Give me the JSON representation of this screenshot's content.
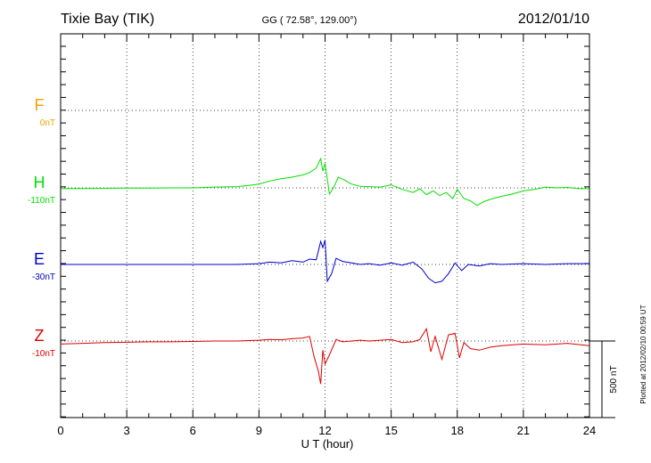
{
  "header": {
    "station": "Tixie Bay (TIK)",
    "coords": "GG ( 72.58°, 129.00°)",
    "date": "2012/01/10"
  },
  "footer_note": "Plotted at 2012/02/10 00:59 UT",
  "scale_label": "500 nT",
  "colors": {
    "F": "#f5a000",
    "H": "#00e000",
    "E": "#0000cc",
    "Z": "#dd0000"
  },
  "chart_data": {
    "type": "line",
    "title": "Tixie Bay (TIK)",
    "xlabel": "U T (hour)",
    "ylabel": "",
    "xlim": [
      0,
      24
    ],
    "x_ticks": [
      "0",
      "3",
      "6",
      "9",
      "12",
      "15",
      "18",
      "21",
      "24"
    ],
    "grid": true,
    "scale_bar_nT": 500,
    "series": [
      {
        "name": "F",
        "baseline_label": "0nT",
        "x": [],
        "values": []
      },
      {
        "name": "H",
        "baseline_label": "-110nT",
        "x": [
          0,
          1,
          2,
          3,
          4,
          5,
          6,
          7,
          8,
          8.5,
          9,
          9.5,
          10,
          10.5,
          11,
          11.3,
          11.6,
          11.8,
          11.9,
          12.0,
          12.1,
          12.2,
          12.4,
          12.6,
          12.9,
          13.2,
          13.6,
          14,
          14.5,
          15,
          15.5,
          16,
          16.3,
          16.6,
          16.9,
          17.2,
          17.5,
          17.8,
          18,
          18.3,
          18.6,
          18.9,
          19.2,
          19.5,
          20,
          20.5,
          21,
          21.5,
          22,
          22.5,
          23,
          23.5,
          24
        ],
        "values": [
          -5,
          -4,
          -3,
          -2,
          -1,
          0,
          0,
          5,
          8,
          15,
          25,
          45,
          60,
          70,
          85,
          100,
          130,
          190,
          110,
          160,
          60,
          -40,
          5,
          70,
          50,
          25,
          10,
          8,
          5,
          20,
          -10,
          -30,
          -5,
          -45,
          -20,
          -50,
          -30,
          -70,
          -10,
          -70,
          -85,
          -115,
          -90,
          -75,
          -55,
          -40,
          -20,
          -10,
          5,
          0,
          3,
          -5,
          -5
        ]
      },
      {
        "name": "E",
        "baseline_label": "-30nT",
        "x": [
          0,
          1,
          2,
          3,
          4,
          5,
          6,
          7,
          8,
          9,
          9.5,
          10,
          10.5,
          11,
          11.3,
          11.6,
          11.8,
          11.9,
          12.0,
          12.1,
          12.3,
          12.5,
          12.8,
          13.2,
          13.6,
          14,
          14.5,
          15,
          15.5,
          16,
          16.4,
          16.7,
          17.0,
          17.3,
          17.6,
          17.9,
          18.2,
          18.5,
          19,
          19.5,
          20,
          21,
          22,
          23,
          24
        ],
        "values": [
          0,
          0,
          0,
          0,
          0,
          0,
          0,
          0,
          0,
          5,
          15,
          10,
          25,
          15,
          35,
          30,
          150,
          110,
          160,
          -110,
          -60,
          40,
          20,
          10,
          0,
          5,
          -5,
          10,
          -5,
          15,
          -30,
          -90,
          -120,
          -110,
          -60,
          10,
          -40,
          0,
          -10,
          5,
          0,
          5,
          0,
          5,
          5
        ]
      },
      {
        "name": "Z",
        "baseline_label": "-10nT",
        "x": [
          0,
          1,
          2,
          3,
          4,
          5,
          6,
          7,
          8,
          9,
          9.5,
          10,
          10.5,
          11,
          11.3,
          11.5,
          11.7,
          11.8,
          11.9,
          12.0,
          12.2,
          12.5,
          12.8,
          13.2,
          13.6,
          14,
          14.5,
          15,
          15.5,
          16,
          16.3,
          16.6,
          16.8,
          17.0,
          17.3,
          17.6,
          17.9,
          18.1,
          18.3,
          18.6,
          19,
          19.5,
          20,
          21,
          22,
          23,
          24
        ],
        "values": [
          -20,
          -15,
          -10,
          -8,
          -5,
          -5,
          -3,
          0,
          0,
          5,
          10,
          8,
          15,
          20,
          30,
          -100,
          -200,
          -280,
          -60,
          -150,
          -90,
          10,
          -5,
          0,
          5,
          0,
          5,
          10,
          -10,
          -5,
          10,
          80,
          -70,
          30,
          -120,
          40,
          50,
          -110,
          -10,
          -50,
          -60,
          -40,
          -30,
          -20,
          -25,
          -15,
          -30
        ]
      }
    ]
  }
}
